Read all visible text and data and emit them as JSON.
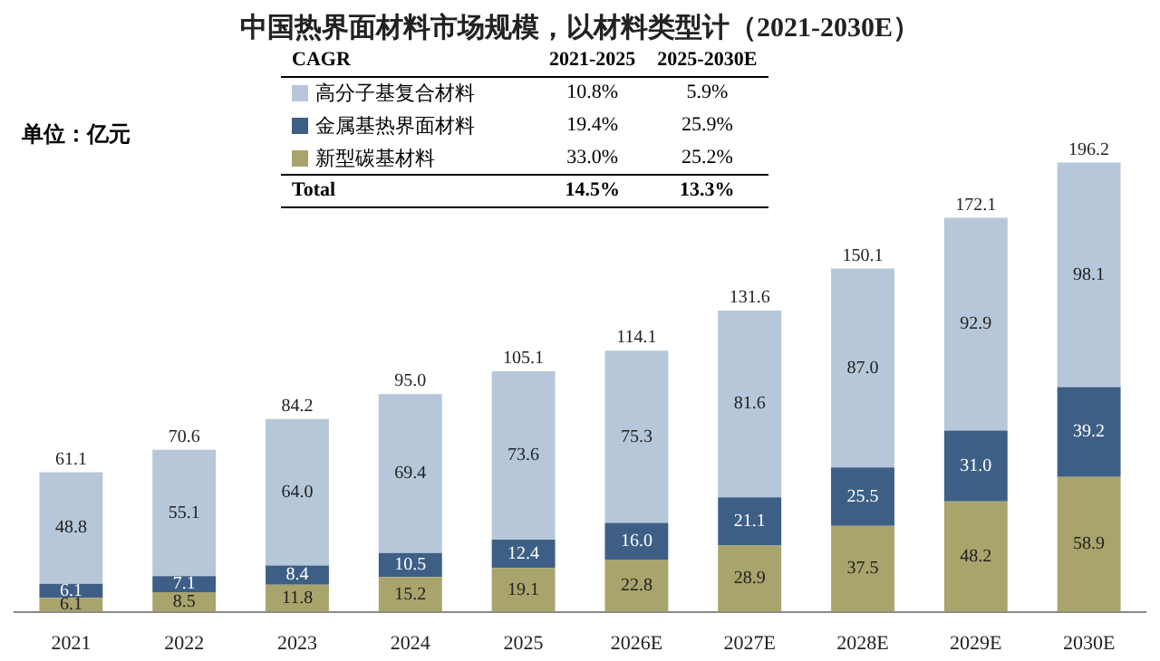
{
  "chart_data": {
    "type": "bar",
    "title": "中国热界面材料市场规模，以材料类型计（2021-2030E）",
    "stacked": true,
    "legend": "top left",
    "categories": [
      "2021",
      "2022",
      "2023",
      "2024",
      "2025",
      "2026E",
      "2027E",
      "2028E",
      "2029E",
      "2030E"
    ],
    "series": [
      {
        "name": "新型碳基材料",
        "color": "#a9a46c",
        "values": [
          6.1,
          8.5,
          11.8,
          15.2,
          19.1,
          22.8,
          28.9,
          37.5,
          48.2,
          58.9
        ],
        "value_labels": [
          "6.1",
          "8.5",
          "11.8",
          "15.2",
          "19.1",
          "22.8",
          "28.9",
          "37.5",
          "48.2",
          "58.9"
        ]
      },
      {
        "name": "金属基热界面材料",
        "color": "#3e5f85",
        "values": [
          6.1,
          7.1,
          8.4,
          10.5,
          12.4,
          16.0,
          21.1,
          25.5,
          31.0,
          39.2
        ],
        "value_labels": [
          "6.1",
          "7.1",
          "8.4",
          "10.5",
          "12.4",
          "16.0",
          "21.1",
          "25.5",
          "31.0",
          "39.2"
        ]
      },
      {
        "name": "高分子基复合材料",
        "color": "#b7c7da",
        "values": [
          48.8,
          55.1,
          64.0,
          69.4,
          73.6,
          75.3,
          81.6,
          87.0,
          92.9,
          98.1
        ],
        "value_labels": [
          "48.8",
          "55.1",
          "64.0",
          "69.4",
          "73.6",
          "75.3",
          "81.6",
          "87.0",
          "92.9",
          "98.1"
        ]
      }
    ],
    "totals": [
      "61.1",
      "70.6",
      "84.2",
      "95.0",
      "105.1",
      "114.1",
      "131.6",
      "150.1",
      "172.1",
      "196.2"
    ],
    "annotations": [
      "单位：亿元",
      "CAGR",
      "2021-2025",
      "2025-2030E",
      "33.0%",
      "25.2%",
      "19.4%",
      "25.9%",
      "10.8%",
      "5.9%",
      "Total",
      "14.5%",
      "13.3%"
    ]
  }
}
